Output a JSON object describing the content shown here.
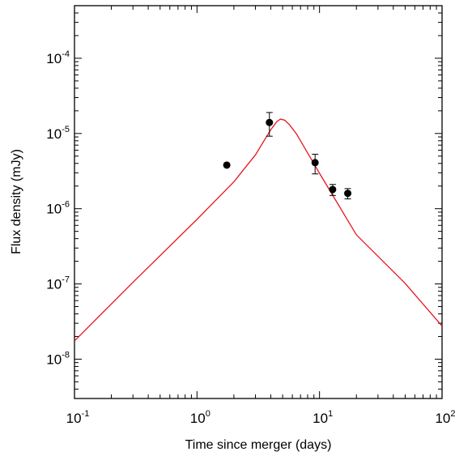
{
  "chart_data": {
    "type": "scatter",
    "title": "",
    "xlabel": "Time since merger (days)",
    "ylabel": "Flux density (mJy)",
    "xscale": "log",
    "yscale": "log",
    "xlim": [
      0.1,
      100
    ],
    "ylim": [
      3e-09,
      0.0005
    ],
    "grid": false,
    "x_ticks": [
      {
        "value": 0.1,
        "base": "10",
        "exp": "-1"
      },
      {
        "value": 1,
        "base": "10",
        "exp": "0"
      },
      {
        "value": 10,
        "base": "10",
        "exp": "1"
      },
      {
        "value": 100,
        "base": "10",
        "exp": "2"
      }
    ],
    "y_ticks": [
      {
        "value": 1e-08,
        "base": "10",
        "exp": "-8"
      },
      {
        "value": 1e-07,
        "base": "10",
        "exp": "-7"
      },
      {
        "value": 1e-06,
        "base": "10",
        "exp": "-6"
      },
      {
        "value": 1e-05,
        "base": "10",
        "exp": "-5"
      },
      {
        "value": 0.0001,
        "base": "10",
        "exp": "-4"
      }
    ],
    "points": [
      {
        "x": 1.75,
        "y": 3.8e-06
      },
      {
        "x": 3.9,
        "y": 1.4e-05,
        "ylow": 9.2e-06,
        "yhigh": 1.9e-05
      },
      {
        "x": 9.2,
        "y": 4.1e-06,
        "ylow": 2.9e-06,
        "yhigh": 5.3e-06
      },
      {
        "x": 12.8,
        "y": 1.8e-06,
        "ylow": 1.5e-06,
        "yhigh": 2.1e-06
      },
      {
        "x": 17,
        "y": 1.6e-06,
        "ylow": 1.35e-06,
        "yhigh": 1.85e-06
      }
    ],
    "model_curve": {
      "color": "#e8141c",
      "x": [
        0.1,
        0.3,
        1,
        2,
        3,
        4,
        4.5,
        4.8,
        5.2,
        5.7,
        6.5,
        8,
        10,
        20,
        50,
        100
      ],
      "y": [
        1.75e-08,
        1.05e-07,
        7.2e-07,
        2.28e-06,
        5.2e-06,
        1.12e-05,
        1.45e-05,
        1.55e-05,
        1.5e-05,
        1.3e-05,
        9.8e-06,
        5.5e-06,
        2.95e-06,
        4.5e-07,
        1.02e-07,
        2.75e-08
      ]
    },
    "point_color": "#000000"
  }
}
